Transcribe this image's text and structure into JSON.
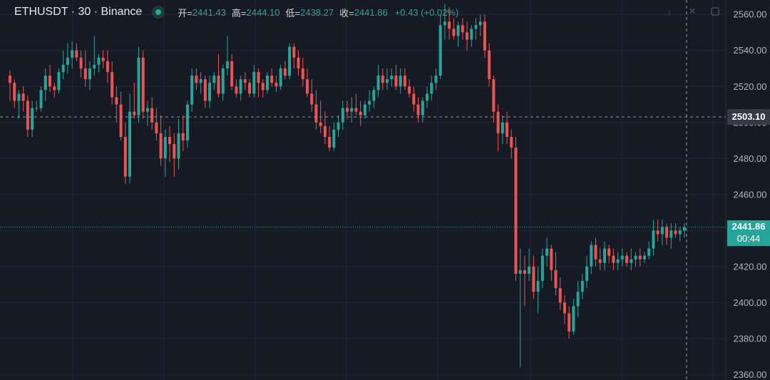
{
  "header": {
    "symbol_title": "ETHUSDT · 30 · Binance",
    "status_icon": "live-dot-icon",
    "ohlc": {
      "open_label": "开=",
      "open": "2441.43",
      "high_label": "高=",
      "high": "2444.10",
      "low_label": "低=",
      "low": "2438.27",
      "close_label": "收=",
      "close": "2441.86",
      "change": "+0.43 (+0.02%)"
    }
  },
  "toolbar_icons": [
    "down-arrow-icon",
    "close-icon",
    "fullscreen-icon"
  ],
  "price_tags": {
    "last_price": "2441.86",
    "countdown": "00:44",
    "crosshair_price": "2503.10"
  },
  "colors": {
    "background": "#161a25",
    "up": "#26a69a",
    "down": "#ef5350",
    "grid": "#232734",
    "axis_text": "#b2b5be"
  },
  "chart_data": {
    "type": "candlestick",
    "y_axis_ticks": [
      2360,
      2380,
      2400,
      2420,
      2440,
      2460,
      2480,
      2500,
      2520,
      2540,
      2560
    ],
    "y_tick_labels": [
      "2360.00",
      "2380.00",
      "2400.00",
      "2420.00",
      "2440.00",
      "2460.00",
      "2480.00",
      "2500.00",
      "2520.00",
      "2540.00",
      "2560.00"
    ],
    "ylim": [
      2357,
      2568
    ],
    "grid": true,
    "last_price": 2441.86,
    "crosshair_price": 2503.1,
    "candles": [
      [
        2526,
        2529,
        2512,
        2522
      ],
      [
        2522,
        2524,
        2508,
        2512
      ],
      [
        2512,
        2518,
        2502,
        2516
      ],
      [
        2516,
        2520,
        2506,
        2512
      ],
      [
        2512,
        2515,
        2492,
        2496
      ],
      [
        2496,
        2512,
        2492,
        2508
      ],
      [
        2508,
        2512,
        2506,
        2508
      ],
      [
        2508,
        2520,
        2506,
        2518
      ],
      [
        2518,
        2530,
        2512,
        2526
      ],
      [
        2526,
        2532,
        2517,
        2520
      ],
      [
        2520,
        2522,
        2514,
        2518
      ],
      [
        2518,
        2530,
        2516,
        2528
      ],
      [
        2528,
        2540,
        2524,
        2532
      ],
      [
        2532,
        2544,
        2527,
        2536
      ],
      [
        2536,
        2545,
        2530,
        2540
      ],
      [
        2540,
        2544,
        2534,
        2536
      ],
      [
        2536,
        2540,
        2525,
        2530
      ],
      [
        2530,
        2540,
        2520,
        2524
      ],
      [
        2524,
        2534,
        2518,
        2530
      ],
      [
        2530,
        2548,
        2526,
        2532
      ],
      [
        2532,
        2538,
        2528,
        2536
      ],
      [
        2536,
        2540,
        2530,
        2534
      ],
      [
        2534,
        2540,
        2522,
        2528
      ],
      [
        2528,
        2534,
        2510,
        2514
      ],
      [
        2514,
        2520,
        2500,
        2510
      ],
      [
        2510,
        2517,
        2490,
        2492
      ],
      [
        2492,
        2500,
        2466,
        2470
      ],
      [
        2470,
        2516,
        2466,
        2506
      ],
      [
        2506,
        2522,
        2502,
        2504
      ],
      [
        2504,
        2542,
        2500,
        2536
      ],
      [
        2536,
        2540,
        2502,
        2506
      ],
      [
        2506,
        2512,
        2498,
        2508
      ],
      [
        2508,
        2514,
        2496,
        2500
      ],
      [
        2500,
        2508,
        2490,
        2494
      ],
      [
        2494,
        2504,
        2476,
        2480
      ],
      [
        2480,
        2496,
        2470,
        2492
      ],
      [
        2492,
        2498,
        2478,
        2488
      ],
      [
        2488,
        2494,
        2470,
        2480
      ],
      [
        2480,
        2502,
        2474,
        2494
      ],
      [
        2494,
        2504,
        2484,
        2490
      ],
      [
        2490,
        2512,
        2486,
        2510
      ],
      [
        2510,
        2530,
        2506,
        2526
      ],
      [
        2526,
        2530,
        2518,
        2522
      ],
      [
        2522,
        2528,
        2516,
        2524
      ],
      [
        2524,
        2526,
        2508,
        2512
      ],
      [
        2512,
        2526,
        2508,
        2522
      ],
      [
        2522,
        2528,
        2518,
        2526
      ],
      [
        2526,
        2538,
        2514,
        2516
      ],
      [
        2516,
        2532,
        2512,
        2530
      ],
      [
        2530,
        2548,
        2526,
        2534
      ],
      [
        2534,
        2538,
        2518,
        2520
      ],
      [
        2520,
        2524,
        2514,
        2516
      ],
      [
        2516,
        2526,
        2512,
        2524
      ],
      [
        2524,
        2528,
        2518,
        2522
      ],
      [
        2522,
        2524,
        2514,
        2516
      ],
      [
        2516,
        2532,
        2514,
        2528
      ],
      [
        2528,
        2530,
        2514,
        2522
      ],
      [
        2522,
        2524,
        2514,
        2518
      ],
      [
        2518,
        2528,
        2516,
        2526
      ],
      [
        2526,
        2530,
        2520,
        2522
      ],
      [
        2522,
        2526,
        2517,
        2520
      ],
      [
        2520,
        2532,
        2518,
        2530
      ],
      [
        2530,
        2534,
        2524,
        2526
      ],
      [
        2526,
        2544,
        2524,
        2542
      ],
      [
        2542,
        2544,
        2530,
        2536
      ],
      [
        2536,
        2540,
        2526,
        2530
      ],
      [
        2530,
        2536,
        2520,
        2524
      ],
      [
        2524,
        2530,
        2514,
        2516
      ],
      [
        2516,
        2524,
        2506,
        2510
      ],
      [
        2510,
        2518,
        2496,
        2500
      ],
      [
        2500,
        2512,
        2494,
        2498
      ],
      [
        2498,
        2506,
        2488,
        2492
      ],
      [
        2492,
        2498,
        2484,
        2486
      ],
      [
        2486,
        2500,
        2484,
        2496
      ],
      [
        2496,
        2504,
        2492,
        2500
      ],
      [
        2500,
        2512,
        2496,
        2508
      ],
      [
        2508,
        2512,
        2502,
        2506
      ],
      [
        2506,
        2514,
        2500,
        2508
      ],
      [
        2508,
        2516,
        2504,
        2506
      ],
      [
        2506,
        2512,
        2498,
        2504
      ],
      [
        2504,
        2512,
        2502,
        2510
      ],
      [
        2510,
        2518,
        2506,
        2512
      ],
      [
        2512,
        2520,
        2508,
        2518
      ],
      [
        2518,
        2532,
        2514,
        2526
      ],
      [
        2526,
        2530,
        2518,
        2522
      ],
      [
        2522,
        2530,
        2518,
        2524
      ],
      [
        2524,
        2530,
        2520,
        2526
      ],
      [
        2526,
        2532,
        2518,
        2520
      ],
      [
        2520,
        2530,
        2516,
        2526
      ],
      [
        2526,
        2530,
        2518,
        2520
      ],
      [
        2520,
        2524,
        2514,
        2516
      ],
      [
        2516,
        2520,
        2506,
        2510
      ],
      [
        2510,
        2514,
        2500,
        2504
      ],
      [
        2504,
        2514,
        2500,
        2512
      ],
      [
        2512,
        2520,
        2508,
        2516
      ],
      [
        2516,
        2526,
        2512,
        2522
      ],
      [
        2522,
        2530,
        2518,
        2526
      ],
      [
        2526,
        2560,
        2524,
        2554
      ],
      [
        2554,
        2566,
        2546,
        2556
      ],
      [
        2556,
        2564,
        2546,
        2552
      ],
      [
        2552,
        2558,
        2546,
        2548
      ],
      [
        2548,
        2556,
        2542,
        2554
      ],
      [
        2554,
        2558,
        2546,
        2550
      ],
      [
        2550,
        2556,
        2540,
        2546
      ],
      [
        2546,
        2554,
        2542,
        2552
      ],
      [
        2552,
        2558,
        2546,
        2554
      ],
      [
        2554,
        2560,
        2548,
        2556
      ],
      [
        2556,
        2560,
        2536,
        2540
      ],
      [
        2540,
        2544,
        2520,
        2524
      ],
      [
        2524,
        2526,
        2500,
        2506
      ],
      [
        2506,
        2510,
        2484,
        2494
      ],
      [
        2494,
        2504,
        2488,
        2500
      ],
      [
        2500,
        2506,
        2488,
        2492
      ],
      [
        2492,
        2496,
        2480,
        2486
      ],
      [
        2486,
        2492,
        2412,
        2416
      ],
      [
        2416,
        2430,
        2364,
        2418
      ],
      [
        2418,
        2426,
        2398,
        2416
      ],
      [
        2416,
        2430,
        2412,
        2420
      ],
      [
        2420,
        2426,
        2402,
        2406
      ],
      [
        2406,
        2420,
        2394,
        2412
      ],
      [
        2412,
        2430,
        2408,
        2426
      ],
      [
        2426,
        2436,
        2420,
        2430
      ],
      [
        2430,
        2432,
        2412,
        2418
      ],
      [
        2418,
        2428,
        2404,
        2408
      ],
      [
        2408,
        2414,
        2396,
        2400
      ],
      [
        2400,
        2404,
        2388,
        2394
      ],
      [
        2394,
        2398,
        2380,
        2384
      ],
      [
        2384,
        2402,
        2382,
        2398
      ],
      [
        2398,
        2412,
        2392,
        2406
      ],
      [
        2406,
        2416,
        2402,
        2412
      ],
      [
        2412,
        2426,
        2408,
        2420
      ],
      [
        2420,
        2434,
        2416,
        2432
      ],
      [
        2432,
        2436,
        2420,
        2424
      ],
      [
        2424,
        2430,
        2418,
        2422
      ],
      [
        2422,
        2434,
        2418,
        2430
      ],
      [
        2430,
        2432,
        2422,
        2426
      ],
      [
        2426,
        2430,
        2418,
        2422
      ],
      [
        2422,
        2428,
        2418,
        2424
      ],
      [
        2424,
        2430,
        2420,
        2426
      ],
      [
        2426,
        2428,
        2420,
        2422
      ],
      [
        2422,
        2430,
        2418,
        2424
      ],
      [
        2424,
        2428,
        2420,
        2426
      ],
      [
        2426,
        2430,
        2420,
        2424
      ],
      [
        2424,
        2428,
        2422,
        2426
      ],
      [
        2426,
        2434,
        2424,
        2430
      ],
      [
        2430,
        2446,
        2426,
        2440
      ],
      [
        2440,
        2446,
        2434,
        2438
      ],
      [
        2438,
        2446,
        2432,
        2442
      ],
      [
        2442,
        2444,
        2432,
        2436
      ],
      [
        2436,
        2444,
        2430,
        2440
      ],
      [
        2440,
        2444,
        2436,
        2438
      ],
      [
        2438,
        2442,
        2434,
        2440
      ],
      [
        2440,
        2444,
        2436,
        2441.86
      ]
    ]
  }
}
